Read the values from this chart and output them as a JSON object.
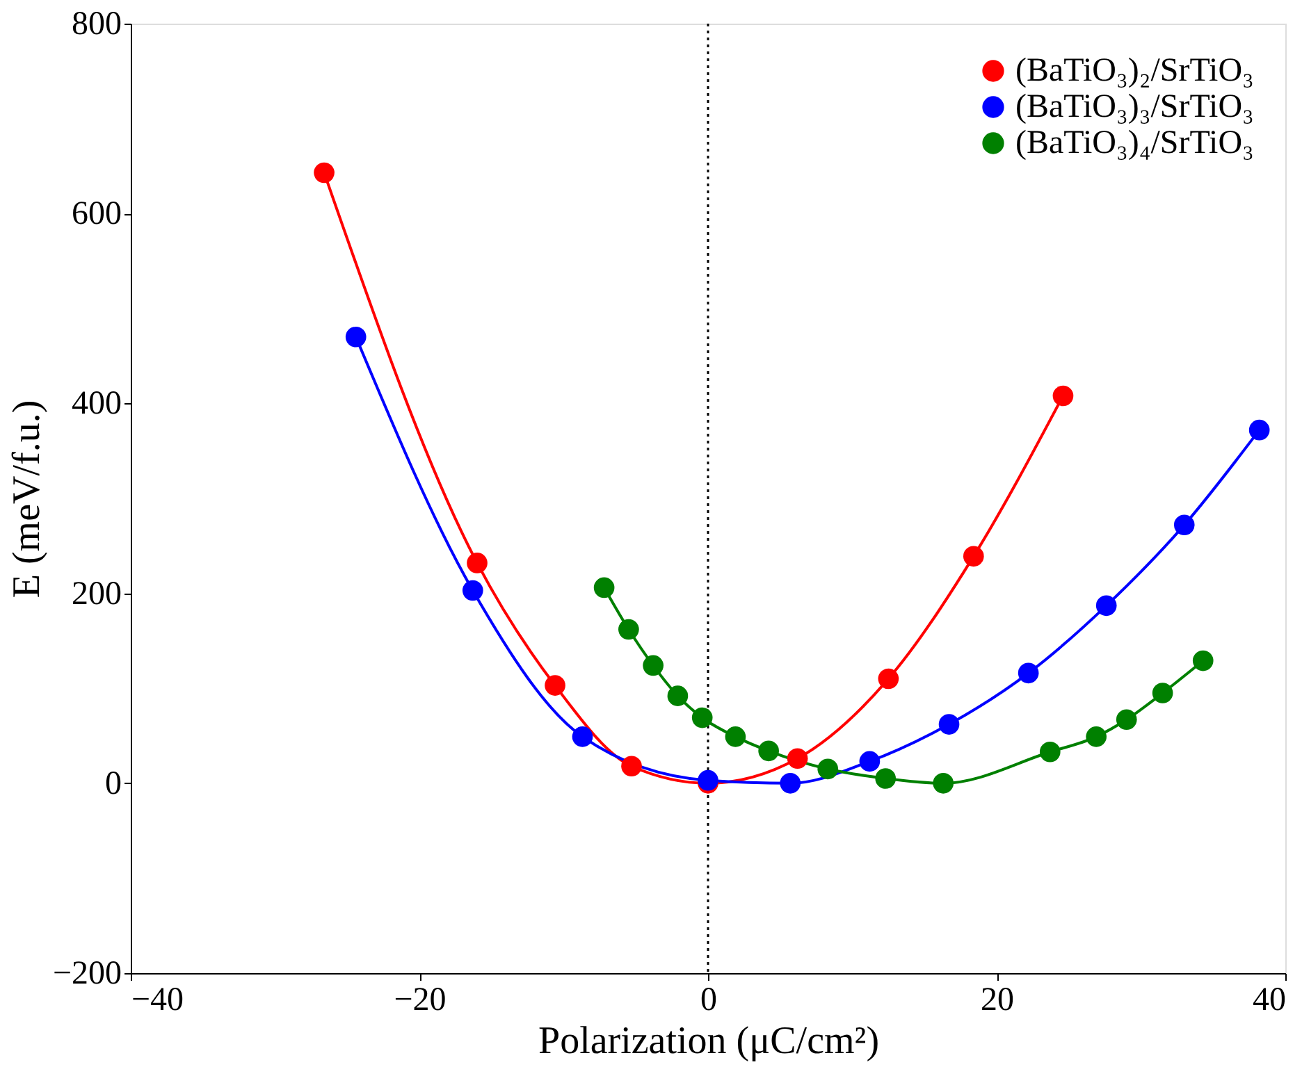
{
  "chart_data": {
    "type": "line",
    "xlabel": "Polarization (μC/cm²)",
    "ylabel": "E (meV/f.u.)",
    "xlim": [
      -40,
      40
    ],
    "xticks": [
      -40,
      -20,
      0,
      20,
      40
    ],
    "ylim": [
      -200,
      800
    ],
    "yticks": [
      -200,
      0,
      200,
      400,
      600,
      800
    ],
    "grid": false,
    "legend": "top right",
    "marker": "circle",
    "line_style": "solid",
    "ref_lines": [
      {
        "axis": "x",
        "value": 0,
        "label": null,
        "color": "#000000",
        "line_style": "dotted"
      }
    ],
    "series": [
      {
        "name": "(BaTiO₃)₂/SrTiO₃",
        "color": "#ff0000",
        "x": [
          -26.6,
          -16.0,
          -10.6,
          -5.3,
          0,
          6.2,
          12.5,
          18.4,
          24.6
        ],
        "values": [
          643,
          232,
          103,
          18,
          0,
          26,
          110,
          239,
          408
        ]
      },
      {
        "name": "(BaTiO₃)₃/SrTiO₃",
        "color": "#0000ff",
        "x": [
          -24.4,
          -16.3,
          -8.7,
          0,
          5.7,
          11.2,
          16.7,
          22.2,
          27.6,
          33.0,
          38.2
        ],
        "values": [
          470,
          203,
          49,
          3,
          0,
          23,
          62,
          116,
          187,
          272,
          372
        ]
      },
      {
        "name": "(BaTiO₃)₄/SrTiO₃",
        "color": "#008000",
        "x": [
          -7.2,
          -5.5,
          -3.8,
          -2.1,
          -0.4,
          1.9,
          4.2,
          8.3,
          12.3,
          16.3,
          23.7,
          26.9,
          29.0,
          31.5,
          34.3
        ],
        "values": [
          206,
          162,
          124,
          92,
          69,
          49,
          34,
          15,
          5,
          0,
          33,
          49,
          67,
          95,
          129
        ]
      }
    ]
  }
}
